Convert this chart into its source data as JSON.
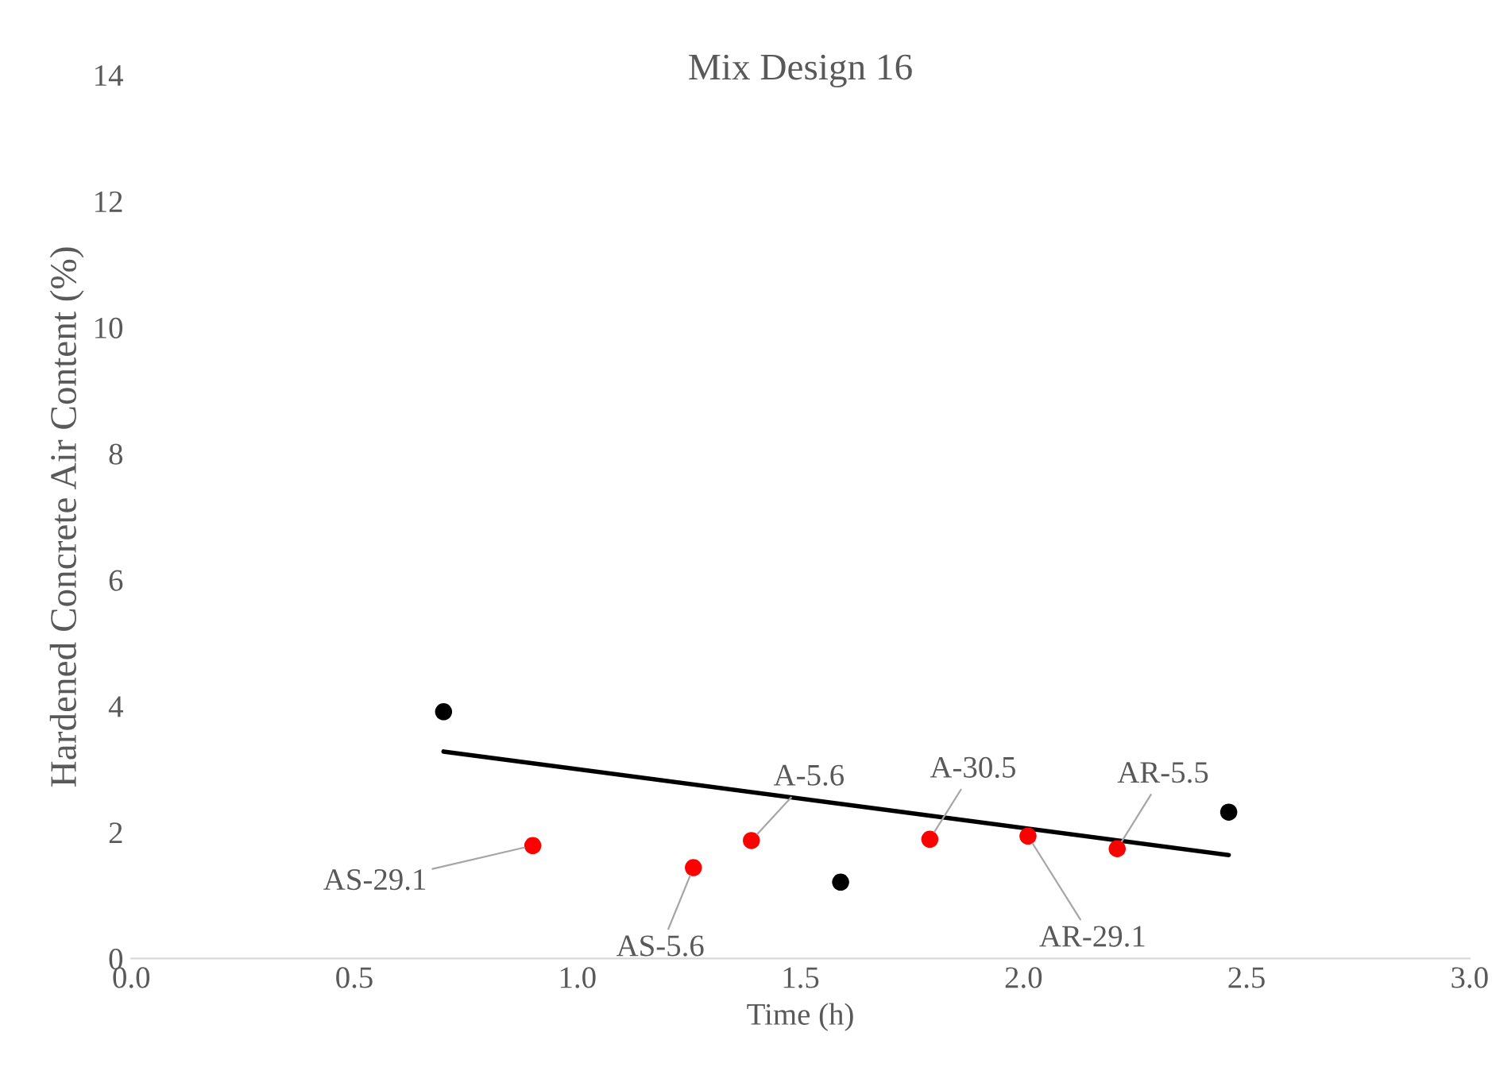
{
  "chart_data": {
    "type": "scatter",
    "title": "Mix Design 16",
    "xlabel": "Time (h)",
    "ylabel": "Hardened Concrete Air Content (%)",
    "xlim": [
      0,
      3
    ],
    "xticks": [
      {
        "value": 0,
        "label": "0.0"
      },
      {
        "value": 0.5,
        "label": "0.5"
      },
      {
        "value": 1,
        "label": "1.0"
      },
      {
        "value": 1.5,
        "label": "1.5"
      },
      {
        "value": 2,
        "label": "2.0"
      },
      {
        "value": 2.5,
        "label": "2.5"
      },
      {
        "value": 3,
        "label": "3.0"
      }
    ],
    "ylim": [
      0,
      14
    ],
    "yticks": [
      0,
      2,
      4,
      6,
      8,
      10,
      12,
      14
    ],
    "grid": false,
    "series": [
      {
        "color": "#000000",
        "marker": "circle",
        "x": [
          0.7,
          1.59,
          2.46
        ],
        "values": [
          3.91,
          1.21,
          2.32
        ]
      },
      {
        "color": "#ff0000",
        "marker": "circle",
        "x": [
          0.9,
          1.26,
          1.39,
          1.79,
          2.01,
          2.21
        ],
        "values": [
          1.79,
          1.44,
          1.87,
          1.89,
          1.94,
          1.74
        ]
      },
      {
        "type": "line",
        "marker": "none",
        "color": "#000000",
        "x": [
          0.7,
          2.46
        ],
        "values": [
          3.28,
          1.64
        ]
      }
    ],
    "annotations": [
      {
        "text": "AS-29.1",
        "x": 0.9,
        "y": 1.79
      },
      {
        "text": "AS-5.6",
        "x": 1.26,
        "y": 1.44
      },
      {
        "text": "A-5.6",
        "x": 1.39,
        "y": 1.87
      },
      {
        "text": "A-30.5",
        "x": 1.79,
        "y": 1.89
      },
      {
        "text": "AR-29.1",
        "x": 2.01,
        "y": 1.94
      },
      {
        "text": "AR-5.5",
        "x": 2.21,
        "y": 1.74
      }
    ]
  }
}
